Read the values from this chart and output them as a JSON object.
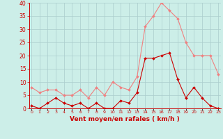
{
  "hours": [
    0,
    1,
    2,
    3,
    4,
    5,
    6,
    7,
    8,
    9,
    10,
    11,
    12,
    13,
    14,
    15,
    16,
    17,
    18,
    19,
    20,
    21,
    22,
    23
  ],
  "rafales": [
    8,
    6,
    7,
    7,
    5,
    5,
    7,
    4,
    8,
    5,
    10,
    8,
    7,
    12,
    31,
    35,
    40,
    37,
    34,
    25,
    20,
    20,
    20,
    13
  ],
  "moyen": [
    1,
    0,
    2,
    4,
    2,
    1,
    2,
    0,
    2,
    0,
    0,
    3,
    2,
    6,
    19,
    19,
    20,
    21,
    11,
    4,
    8,
    4,
    1,
    0
  ],
  "line_color_rafales": "#f08080",
  "line_color_moyen": "#cc0000",
  "bg_color": "#cceee8",
  "grid_color": "#aacccc",
  "xlabel": "Vent moyen/en rafales ( km/h )",
  "xlabel_color": "#cc0000",
  "tick_color": "#cc0000",
  "ylim": [
    0,
    40
  ],
  "yticks": [
    0,
    5,
    10,
    15,
    20,
    25,
    30,
    35,
    40
  ],
  "spine_color": "#cc0000"
}
